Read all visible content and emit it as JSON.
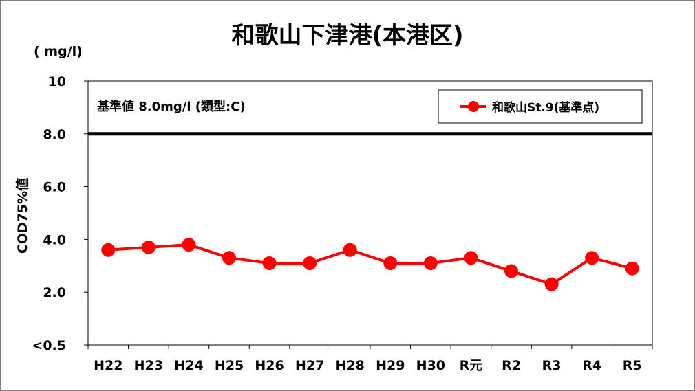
{
  "chart_data": {
    "type": "line",
    "title": "和歌山下津港(本港区)",
    "unit": "( mg/l)",
    "ylabel": "COD75%値",
    "categories": [
      "H22",
      "H23",
      "H24",
      "H25",
      "H26",
      "H27",
      "H28",
      "H29",
      "H30",
      "R元",
      "R2",
      "R3",
      "R4",
      "R5"
    ],
    "series": [
      {
        "name": "和歌山St.9(基準点)",
        "color": "#ff0000",
        "values": [
          3.6,
          3.7,
          3.8,
          3.3,
          3.1,
          3.1,
          3.6,
          3.1,
          3.1,
          3.3,
          2.8,
          2.3,
          3.3,
          2.9
        ]
      }
    ],
    "ylim": [
      0,
      10
    ],
    "yticks": [
      {
        "value": 10,
        "label": "10"
      },
      {
        "value": 8,
        "label": "8.0"
      },
      {
        "value": 6,
        "label": "6.0"
      },
      {
        "value": 4,
        "label": "4.0"
      },
      {
        "value": 2,
        "label": "2.0"
      },
      {
        "value": 0,
        "label": "<0.5"
      }
    ],
    "standard": {
      "value": 8.0,
      "text": "基準値 8.0mg/l (類型:C)",
      "color": "#000000"
    },
    "grid": false,
    "legend_position": "top-right"
  }
}
